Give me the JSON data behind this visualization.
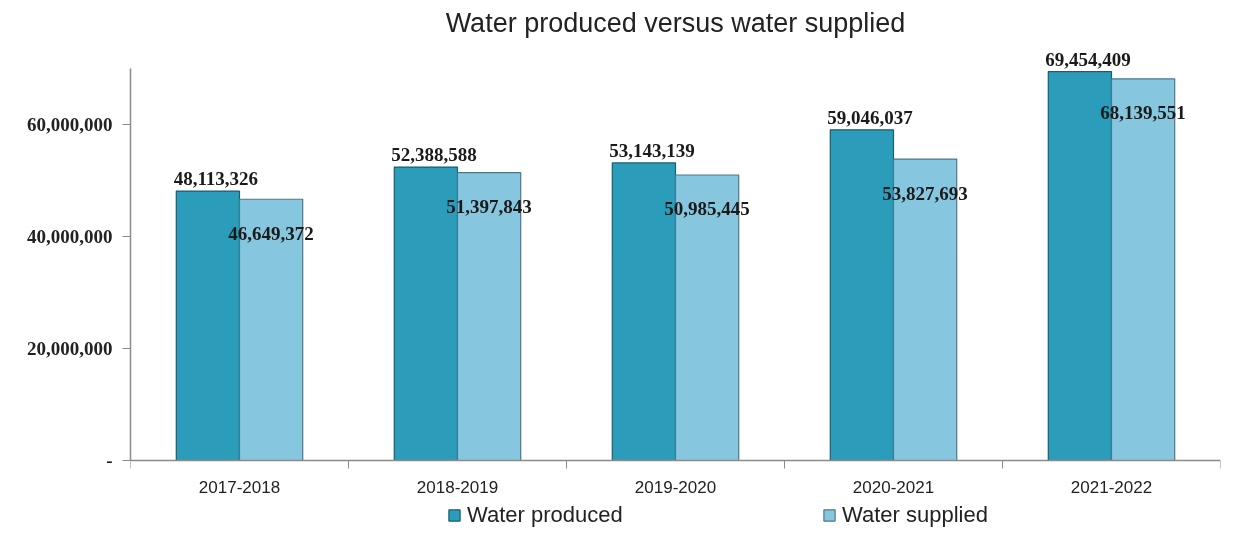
{
  "chart_data": {
    "type": "bar",
    "title": "Water produced versus water supplied",
    "categories": [
      "2017-2018",
      "2018-2019",
      "2019-2020",
      "2020-2021",
      "2021-2022"
    ],
    "series": [
      {
        "name": "Water produced",
        "color": "#2b9cba",
        "values": [
          48113326,
          52388588,
          53143139,
          59046037,
          69454409
        ],
        "value_labels": [
          "48,113,326",
          "52,388,588",
          "53,143,139",
          "59,046,037",
          "69,454,409"
        ]
      },
      {
        "name": "Water supplied",
        "color": "#86c6df",
        "values": [
          46649372,
          51397843,
          50985445,
          53827693,
          68139551
        ],
        "value_labels": [
          "46,649,372",
          "51,397,843",
          "50,985,445",
          "53,827,693",
          "68,139,551"
        ]
      }
    ],
    "ylim": [
      0,
      70000000
    ],
    "yticks": [
      {
        "value": 0,
        "label": "-"
      },
      {
        "value": 20000000,
        "label": "20,000,000"
      },
      {
        "value": 40000000,
        "label": "40,000,000"
      },
      {
        "value": 60000000,
        "label": "60,000,000"
      }
    ],
    "legend": "bottom"
  }
}
